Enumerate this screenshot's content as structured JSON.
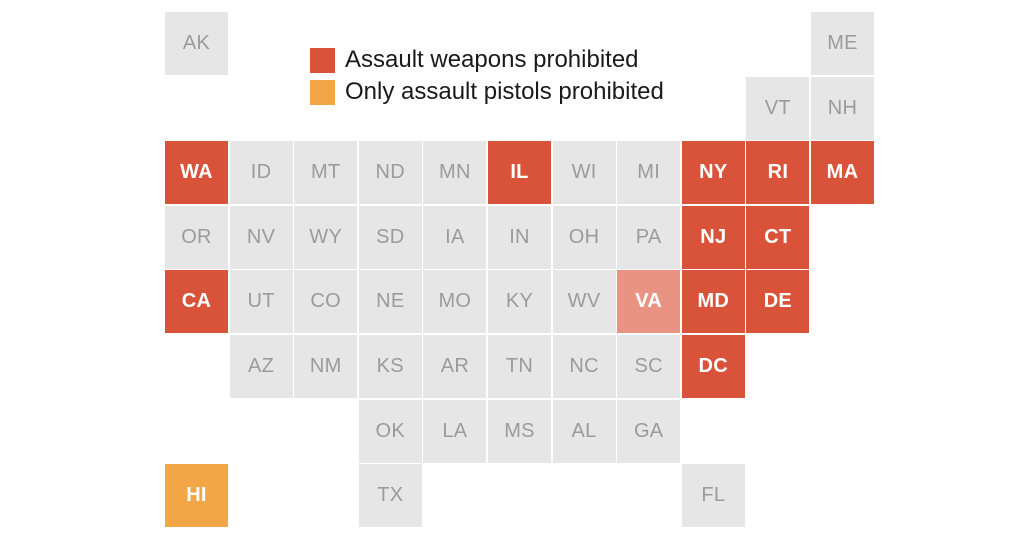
{
  "colors": {
    "prohibited": "#d9533a",
    "pistols_only": "#f3a645",
    "partial": "#e99483",
    "none": "#e6e6e6",
    "text_none": "#9b9b9b",
    "text_highlight": "#ffffff"
  },
  "legend": {
    "items": [
      {
        "label": "Assault weapons prohibited",
        "status": "prohibited"
      },
      {
        "label": "Only assault pistols prohibited",
        "status": "pistols_only"
      }
    ]
  },
  "states": [
    {
      "abbr": "AK",
      "row": 0,
      "col": 0,
      "status": "none"
    },
    {
      "abbr": "ME",
      "row": 0,
      "col": 10,
      "status": "none"
    },
    {
      "abbr": "VT",
      "row": 1,
      "col": 9,
      "status": "none"
    },
    {
      "abbr": "NH",
      "row": 1,
      "col": 10,
      "status": "none"
    },
    {
      "abbr": "WA",
      "row": 2,
      "col": 0,
      "status": "prohibited"
    },
    {
      "abbr": "ID",
      "row": 2,
      "col": 1,
      "status": "none"
    },
    {
      "abbr": "MT",
      "row": 2,
      "col": 2,
      "status": "none"
    },
    {
      "abbr": "ND",
      "row": 2,
      "col": 3,
      "status": "none"
    },
    {
      "abbr": "MN",
      "row": 2,
      "col": 4,
      "status": "none"
    },
    {
      "abbr": "IL",
      "row": 2,
      "col": 5,
      "status": "prohibited"
    },
    {
      "abbr": "WI",
      "row": 2,
      "col": 6,
      "status": "none"
    },
    {
      "abbr": "MI",
      "row": 2,
      "col": 7,
      "status": "none"
    },
    {
      "abbr": "NY",
      "row": 2,
      "col": 8,
      "status": "prohibited"
    },
    {
      "abbr": "RI",
      "row": 2,
      "col": 9,
      "status": "prohibited"
    },
    {
      "abbr": "MA",
      "row": 2,
      "col": 10,
      "status": "prohibited"
    },
    {
      "abbr": "OR",
      "row": 3,
      "col": 0,
      "status": "none"
    },
    {
      "abbr": "NV",
      "row": 3,
      "col": 1,
      "status": "none"
    },
    {
      "abbr": "WY",
      "row": 3,
      "col": 2,
      "status": "none"
    },
    {
      "abbr": "SD",
      "row": 3,
      "col": 3,
      "status": "none"
    },
    {
      "abbr": "IA",
      "row": 3,
      "col": 4,
      "status": "none"
    },
    {
      "abbr": "IN",
      "row": 3,
      "col": 5,
      "status": "none"
    },
    {
      "abbr": "OH",
      "row": 3,
      "col": 6,
      "status": "none"
    },
    {
      "abbr": "PA",
      "row": 3,
      "col": 7,
      "status": "none"
    },
    {
      "abbr": "NJ",
      "row": 3,
      "col": 8,
      "status": "prohibited"
    },
    {
      "abbr": "CT",
      "row": 3,
      "col": 9,
      "status": "prohibited"
    },
    {
      "abbr": "CA",
      "row": 4,
      "col": 0,
      "status": "prohibited"
    },
    {
      "abbr": "UT",
      "row": 4,
      "col": 1,
      "status": "none"
    },
    {
      "abbr": "CO",
      "row": 4,
      "col": 2,
      "status": "none"
    },
    {
      "abbr": "NE",
      "row": 4,
      "col": 3,
      "status": "none"
    },
    {
      "abbr": "MO",
      "row": 4,
      "col": 4,
      "status": "none"
    },
    {
      "abbr": "KY",
      "row": 4,
      "col": 5,
      "status": "none"
    },
    {
      "abbr": "WV",
      "row": 4,
      "col": 6,
      "status": "none"
    },
    {
      "abbr": "VA",
      "row": 4,
      "col": 7,
      "status": "partial"
    },
    {
      "abbr": "MD",
      "row": 4,
      "col": 8,
      "status": "prohibited"
    },
    {
      "abbr": "DE",
      "row": 4,
      "col": 9,
      "status": "prohibited"
    },
    {
      "abbr": "AZ",
      "row": 5,
      "col": 1,
      "status": "none"
    },
    {
      "abbr": "NM",
      "row": 5,
      "col": 2,
      "status": "none"
    },
    {
      "abbr": "KS",
      "row": 5,
      "col": 3,
      "status": "none"
    },
    {
      "abbr": "AR",
      "row": 5,
      "col": 4,
      "status": "none"
    },
    {
      "abbr": "TN",
      "row": 5,
      "col": 5,
      "status": "none"
    },
    {
      "abbr": "NC",
      "row": 5,
      "col": 6,
      "status": "none"
    },
    {
      "abbr": "SC",
      "row": 5,
      "col": 7,
      "status": "none"
    },
    {
      "abbr": "DC",
      "row": 5,
      "col": 8,
      "status": "prohibited"
    },
    {
      "abbr": "OK",
      "row": 6,
      "col": 3,
      "status": "none"
    },
    {
      "abbr": "LA",
      "row": 6,
      "col": 4,
      "status": "none"
    },
    {
      "abbr": "MS",
      "row": 6,
      "col": 5,
      "status": "none"
    },
    {
      "abbr": "AL",
      "row": 6,
      "col": 6,
      "status": "none"
    },
    {
      "abbr": "GA",
      "row": 6,
      "col": 7,
      "status": "none"
    },
    {
      "abbr": "HI",
      "row": 7,
      "col": 0,
      "status": "pistols_only"
    },
    {
      "abbr": "TX",
      "row": 7,
      "col": 3,
      "status": "none"
    },
    {
      "abbr": "FL",
      "row": 7,
      "col": 8,
      "status": "none"
    }
  ]
}
